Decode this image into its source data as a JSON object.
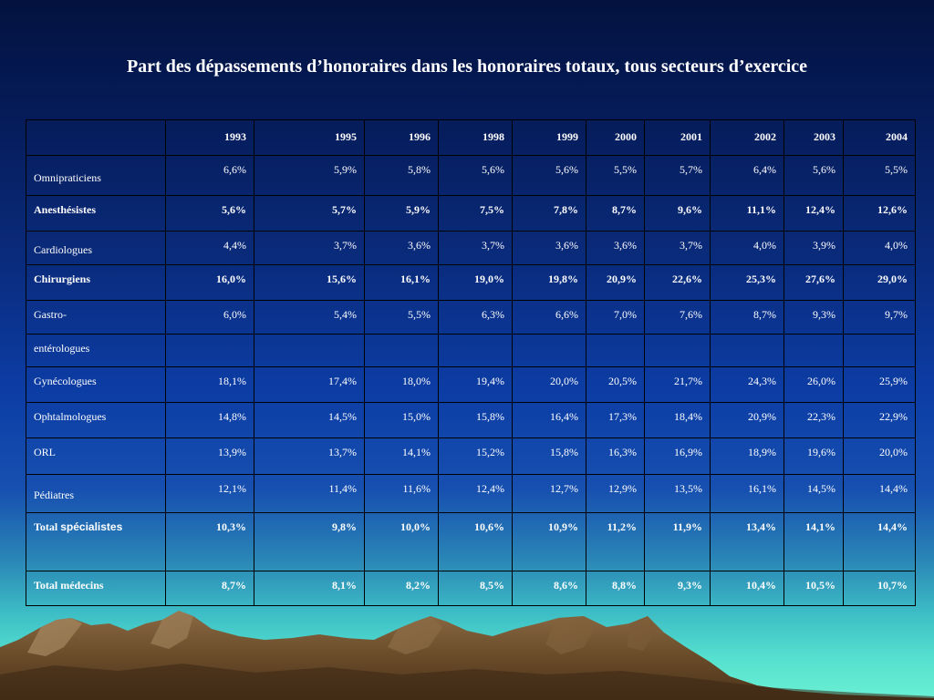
{
  "title": "Part des dépassements d’honoraires dans les honoraires totaux, tous secteurs d’exercice",
  "table": {
    "header": [
      "",
      "1993",
      "1995",
      "1996",
      "1998",
      "1999",
      "2000",
      "2001",
      "2002",
      "2003",
      "2004"
    ],
    "rows": [
      {
        "label": "Omnipraticiens",
        "bold": false,
        "values": [
          "6,6%",
          "5,9%",
          "5,8%",
          "5,6%",
          "5,6%",
          "5,5%",
          "5,7%",
          "6,4%",
          "5,6%",
          "5,5%"
        ]
      },
      {
        "label": "Anesthésistes",
        "bold": true,
        "values": [
          "5,6%",
          "5,7%",
          "5,9%",
          "7,5%",
          "7,8%",
          "8,7%",
          "9,6%",
          "11,1%",
          "12,4%",
          "12,6%"
        ]
      },
      {
        "label": "Cardiologues",
        "bold": false,
        "values": [
          "4,4%",
          "3,7%",
          "3,6%",
          "3,7%",
          "3,6%",
          "3,6%",
          "3,7%",
          "4,0%",
          "3,9%",
          "4,0%"
        ]
      },
      {
        "label": "Chirurgiens",
        "bold": true,
        "values": [
          "16,0%",
          "15,6%",
          "16,1%",
          "19,0%",
          "19,8%",
          "20,9%",
          "22,6%",
          "25,3%",
          "27,6%",
          "29,0%"
        ]
      },
      {
        "label": "Gastro-",
        "bold": false,
        "values": [
          "6,0%",
          "5,4%",
          "5,5%",
          "6,3%",
          "6,6%",
          "7,0%",
          "7,6%",
          "8,7%",
          "9,3%",
          "9,7%"
        ]
      },
      {
        "label": "entérologues",
        "bold": false,
        "values": [
          "",
          "",
          "",
          "",
          "",
          "",
          "",
          "",
          "",
          ""
        ]
      },
      {
        "label": "Gynécologues",
        "bold": false,
        "values": [
          "18,1%",
          "17,4%",
          "18,0%",
          "19,4%",
          "20,0%",
          "20,5%",
          "21,7%",
          "24,3%",
          "26,0%",
          "25,9%"
        ]
      },
      {
        "label": "Ophtalmologues",
        "bold": false,
        "values": [
          "14,8%",
          "14,5%",
          "15,0%",
          "15,8%",
          "16,4%",
          "17,3%",
          "18,4%",
          "20,9%",
          "22,3%",
          "22,9%"
        ]
      },
      {
        "label": "ORL",
        "bold": false,
        "values": [
          "13,9%",
          "13,7%",
          "14,1%",
          "15,2%",
          "15,8%",
          "16,3%",
          "16,9%",
          "18,9%",
          "19,6%",
          "20,0%"
        ]
      },
      {
        "label": "Pédiatres",
        "bold": false,
        "values": [
          "12,1%",
          "11,4%",
          "11,6%",
          "12,4%",
          "12,7%",
          "12,9%",
          "13,5%",
          "16,1%",
          "14,5%",
          "14,4%"
        ]
      },
      {
        "label_part1": "Total",
        "label_part2": "spécialistes",
        "bold": true,
        "values": [
          "10,3%",
          "9,8%",
          "10,0%",
          "10,6%",
          "10,9%",
          "11,2%",
          "11,9%",
          "13,4%",
          "14,1%",
          "14,4%"
        ]
      },
      {
        "label": "Total médecins",
        "bold": true,
        "values": [
          "8,7%",
          "8,1%",
          "8,2%",
          "8,5%",
          "8,6%",
          "8,8%",
          "9,3%",
          "10,4%",
          "10,5%",
          "10,7%"
        ]
      }
    ]
  },
  "colors": {
    "background_top": "#03123f",
    "background_bottom": "#6af0d4",
    "text": "#ffffff",
    "grid": "#000000",
    "mountain": "#6b4c2a"
  }
}
